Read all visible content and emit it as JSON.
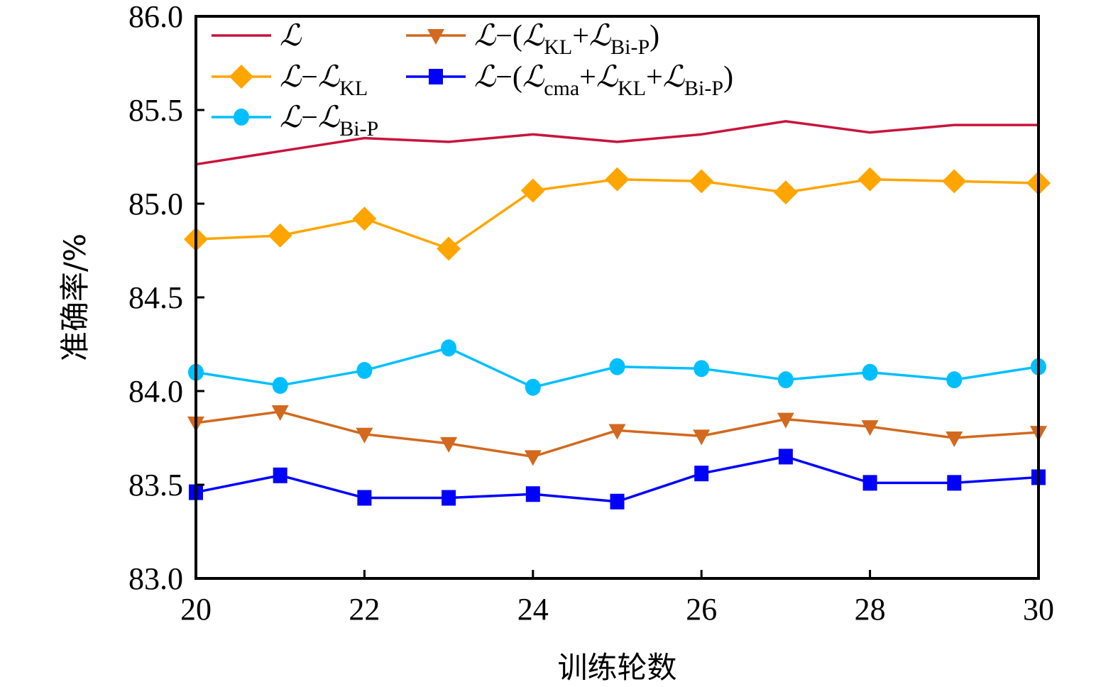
{
  "chart_data": {
    "type": "line",
    "title": "",
    "xlabel": "训练轮数",
    "ylabel": "准确率/%",
    "xlim": [
      20,
      30
    ],
    "ylim": [
      83.0,
      86.0
    ],
    "xticks": [
      20,
      22,
      24,
      26,
      28,
      30
    ],
    "xtick_labels": [
      "20",
      "22",
      "24",
      "26",
      "28",
      "30"
    ],
    "yticks": [
      83.0,
      83.5,
      84.0,
      84.5,
      85.0,
      85.5,
      86.0
    ],
    "ytick_labels": [
      "83.0",
      "83.5",
      "84.0",
      "84.5",
      "85.0",
      "85.5",
      "86.0"
    ],
    "grid": false,
    "legend_position": "top-left",
    "x": [
      20,
      21,
      22,
      23,
      24,
      25,
      26,
      27,
      28,
      29,
      30
    ],
    "series": [
      {
        "name": "L",
        "legend_parts": [
          {
            "t": "ℒ"
          }
        ],
        "color": "#c8143c",
        "marker": "none",
        "values": [
          85.21,
          85.28,
          85.35,
          85.33,
          85.37,
          85.33,
          85.37,
          85.44,
          85.38,
          85.42,
          85.42
        ]
      },
      {
        "name": "L−L_KL",
        "legend_parts": [
          {
            "t": "ℒ"
          },
          {
            "t": "−",
            "op": true
          },
          {
            "t": "ℒ"
          },
          {
            "t": "KL",
            "sub": true
          }
        ],
        "color": "#ffa500",
        "marker": "diamond",
        "values": [
          84.81,
          84.83,
          84.92,
          84.76,
          85.07,
          85.13,
          85.12,
          85.06,
          85.13,
          85.12,
          85.11
        ]
      },
      {
        "name": "L−L_Bi-P",
        "legend_parts": [
          {
            "t": "ℒ"
          },
          {
            "t": "−",
            "op": true
          },
          {
            "t": "ℒ"
          },
          {
            "t": "Bi-P",
            "sub": true
          }
        ],
        "color": "#00bfff",
        "marker": "circle",
        "values": [
          84.1,
          84.03,
          84.11,
          84.23,
          84.02,
          84.13,
          84.12,
          84.06,
          84.1,
          84.06,
          84.13
        ]
      },
      {
        "name": "L−(L_KL+L_Bi-P)",
        "legend_parts": [
          {
            "t": "ℒ"
          },
          {
            "t": "−(",
            "op": true
          },
          {
            "t": "ℒ"
          },
          {
            "t": "KL",
            "sub": true
          },
          {
            "t": "+",
            "op": true
          },
          {
            "t": "ℒ"
          },
          {
            "t": "Bi-P",
            "sub": true
          },
          {
            "t": ")",
            "op": true
          }
        ],
        "color": "#d2691e",
        "marker": "triangle-down",
        "values": [
          83.83,
          83.89,
          83.77,
          83.72,
          83.65,
          83.79,
          83.76,
          83.85,
          83.81,
          83.75,
          83.78
        ]
      },
      {
        "name": "L−(L_cma+L_KL+L_Bi-P)",
        "legend_parts": [
          {
            "t": "ℒ"
          },
          {
            "t": "−(",
            "op": true
          },
          {
            "t": "ℒ"
          },
          {
            "t": "cma",
            "sub": true
          },
          {
            "t": "+",
            "op": true
          },
          {
            "t": "ℒ"
          },
          {
            "t": "KL",
            "sub": true
          },
          {
            "t": "+",
            "op": true
          },
          {
            "t": "ℒ"
          },
          {
            "t": "Bi-P",
            "sub": true
          },
          {
            "t": ")",
            "op": true
          }
        ],
        "color": "#0000ff",
        "marker": "square",
        "values": [
          83.46,
          83.55,
          83.43,
          83.43,
          83.45,
          83.41,
          83.56,
          83.65,
          83.51,
          83.51,
          83.54
        ]
      }
    ]
  }
}
